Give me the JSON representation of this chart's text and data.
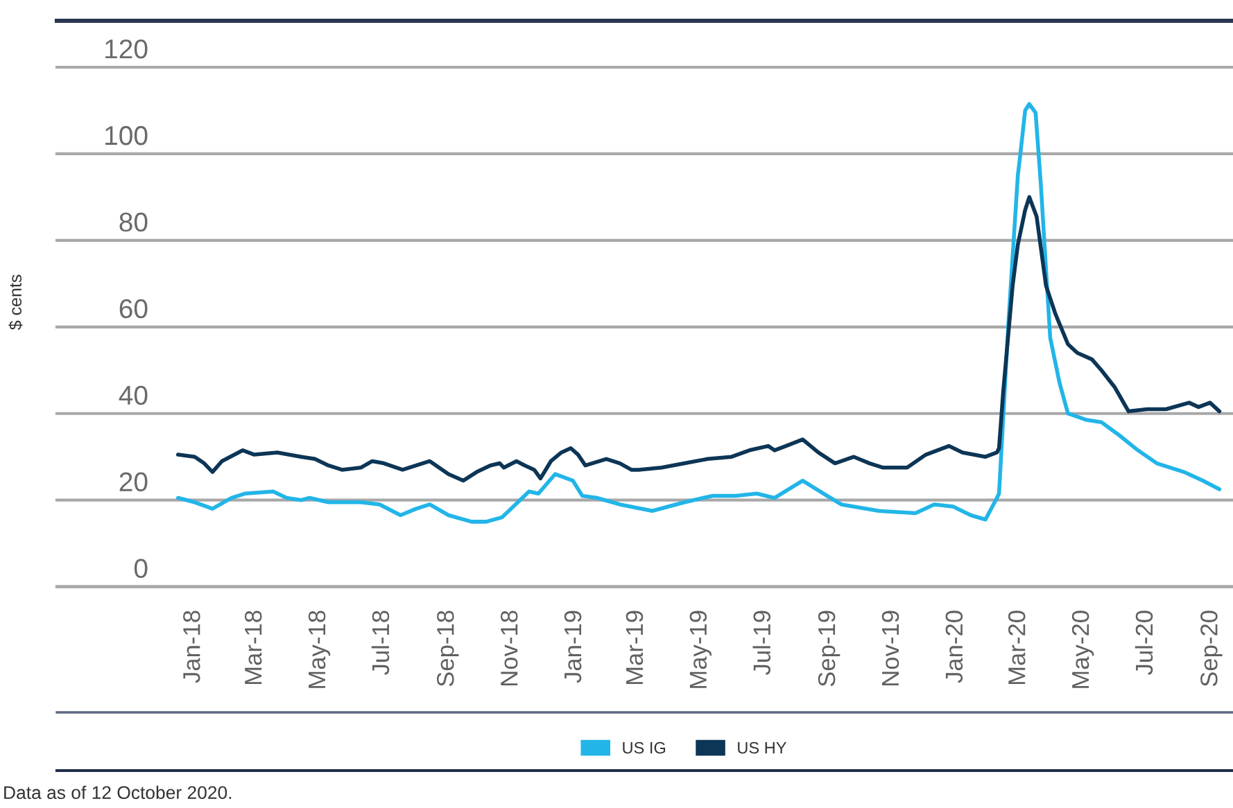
{
  "chart_data": {
    "type": "line",
    "ylabel": "$ cents",
    "annotations": [
      "Data as of 12 October 2020."
    ],
    "xlim": [
      "2017-08-23",
      "2020-09-22"
    ],
    "xticks": [
      {
        "value": "2018-01-01",
        "label": "Jan-18"
      },
      {
        "value": "2018-03-01",
        "label": "Mar-18"
      },
      {
        "value": "2018-05-01",
        "label": "May-18"
      },
      {
        "value": "2018-07-01",
        "label": "Jul-18"
      },
      {
        "value": "2018-09-01",
        "label": "Sep-18"
      },
      {
        "value": "2018-11-01",
        "label": "Nov-18"
      },
      {
        "value": "2019-01-01",
        "label": "Jan-19"
      },
      {
        "value": "2019-03-01",
        "label": "Mar-19"
      },
      {
        "value": "2019-05-01",
        "label": "May-19"
      },
      {
        "value": "2019-07-01",
        "label": "Jul-19"
      },
      {
        "value": "2019-09-01",
        "label": "Sep-19"
      },
      {
        "value": "2019-11-01",
        "label": "Nov-19"
      },
      {
        "value": "2020-01-01",
        "label": "Jan-20"
      },
      {
        "value": "2020-03-01",
        "label": "Mar-20"
      },
      {
        "value": "2020-05-01",
        "label": "May-20"
      },
      {
        "value": "2020-07-01",
        "label": "Jul-20"
      },
      {
        "value": "2020-09-01",
        "label": "Sep-20"
      }
    ],
    "ylim": [
      0,
      120
    ],
    "yticks": [
      0,
      20,
      40,
      60,
      80,
      100,
      120
    ],
    "grid": "y",
    "legend": "bottom",
    "series": [
      {
        "name": "US IG",
        "color": "#22b5e8",
        "x": [
          "2017-12-17",
          "2018-01-02",
          "2018-01-19",
          "2018-02-06",
          "2018-02-19",
          "2018-03-18",
          "2018-03-31",
          "2018-04-14",
          "2018-04-22",
          "2018-05-10",
          "2018-06-10",
          "2018-06-28",
          "2018-07-18",
          "2018-08-02",
          "2018-08-15",
          "2018-09-02",
          "2018-09-24",
          "2018-10-08",
          "2018-10-23",
          "2018-11-03",
          "2018-11-18",
          "2018-11-27",
          "2018-12-13",
          "2018-12-30",
          "2019-01-08",
          "2019-01-22",
          "2019-02-13",
          "2019-03-16",
          "2019-04-16",
          "2019-05-13",
          "2019-06-04",
          "2019-06-24",
          "2019-07-11",
          "2019-08-07",
          "2019-08-27",
          "2019-09-13",
          "2019-10-19",
          "2019-11-23",
          "2019-12-11",
          "2019-12-29",
          "2020-01-15",
          "2020-01-29",
          "2020-02-09",
          "2020-02-11",
          "2020-02-20",
          "2020-02-29",
          "2020-03-02",
          "2020-03-07",
          "2020-03-11",
          "2020-03-17",
          "2020-03-22",
          "2020-03-31",
          "2020-04-09",
          "2020-04-17",
          "2020-05-05",
          "2020-05-19",
          "2020-06-05",
          "2020-06-23",
          "2020-07-11",
          "2020-08-06",
          "2020-08-24",
          "2020-09-09"
        ],
        "values": [
          20.5,
          19.5,
          18,
          20.5,
          21.5,
          22,
          20.5,
          20,
          20.5,
          19.5,
          19.5,
          19,
          16.5,
          18,
          19,
          16.5,
          15,
          15,
          16,
          18.5,
          22,
          21.5,
          26,
          24.5,
          21,
          20.5,
          19,
          17.5,
          19.5,
          21,
          21,
          21.5,
          20.5,
          24.5,
          21.5,
          19,
          17.5,
          17,
          19,
          18.5,
          16.5,
          15.5,
          20.5,
          21.5,
          61,
          95,
          99,
          110,
          111.5,
          109.5,
          93,
          57.5,
          47,
          40,
          38.5,
          38,
          35,
          31.5,
          28.5,
          26.5,
          24.5,
          22.5
        ]
      },
      {
        "name": "US HY",
        "color": "#0c3556",
        "x": [
          "2017-12-17",
          "2018-01-02",
          "2018-01-11",
          "2018-01-19",
          "2018-01-28",
          "2018-02-17",
          "2018-02-28",
          "2018-03-22",
          "2018-04-14",
          "2018-04-27",
          "2018-05-10",
          "2018-05-23",
          "2018-06-10",
          "2018-06-21",
          "2018-07-02",
          "2018-07-20",
          "2018-08-02",
          "2018-08-15",
          "2018-09-02",
          "2018-09-16",
          "2018-09-29",
          "2018-10-12",
          "2018-10-21",
          "2018-10-25",
          "2018-11-06",
          "2018-11-14",
          "2018-11-23",
          "2018-11-29",
          "2018-12-09",
          "2018-12-19",
          "2018-12-28",
          "2019-01-04",
          "2019-01-11",
          "2019-01-31",
          "2019-02-13",
          "2019-02-24",
          "2019-03-03",
          "2019-03-25",
          "2019-04-16",
          "2019-05-08",
          "2019-05-31",
          "2019-06-17",
          "2019-07-05",
          "2019-07-11",
          "2019-07-22",
          "2019-08-07",
          "2019-08-22",
          "2019-09-07",
          "2019-09-25",
          "2019-10-10",
          "2019-10-23",
          "2019-11-15",
          "2019-12-03",
          "2019-12-25",
          "2020-01-07",
          "2020-01-29",
          "2020-02-09",
          "2020-02-11",
          "2020-02-15",
          "2020-02-24",
          "2020-02-29",
          "2020-03-07",
          "2020-03-11",
          "2020-03-18",
          "2020-03-27",
          "2020-04-05",
          "2020-04-17",
          "2020-04-26",
          "2020-05-10",
          "2020-05-19",
          "2020-06-01",
          "2020-06-14",
          "2020-07-02",
          "2020-07-20",
          "2020-08-11",
          "2020-08-20",
          "2020-08-31",
          "2020-09-09"
        ],
        "values": [
          30.5,
          30,
          28.5,
          26.5,
          29,
          31.5,
          30.5,
          31,
          30,
          29.5,
          28,
          27,
          27.5,
          29,
          28.5,
          27,
          28,
          29,
          26,
          24.5,
          26.5,
          28,
          28.5,
          27.5,
          29,
          28,
          27,
          25,
          29,
          31,
          32,
          30.5,
          28,
          29.5,
          28.5,
          27,
          27,
          27.5,
          28.5,
          29.5,
          30,
          31.5,
          32.5,
          31.5,
          32.5,
          34,
          31,
          28.5,
          30,
          28.5,
          27.5,
          27.5,
          30.5,
          32.5,
          31,
          30,
          31,
          32,
          45,
          69.5,
          79,
          87,
          90,
          85.5,
          69.5,
          63,
          56,
          54,
          52.5,
          50,
          46,
          40.5,
          41,
          41,
          42.5,
          41.5,
          42.5,
          40.5
        ]
      }
    ]
  }
}
